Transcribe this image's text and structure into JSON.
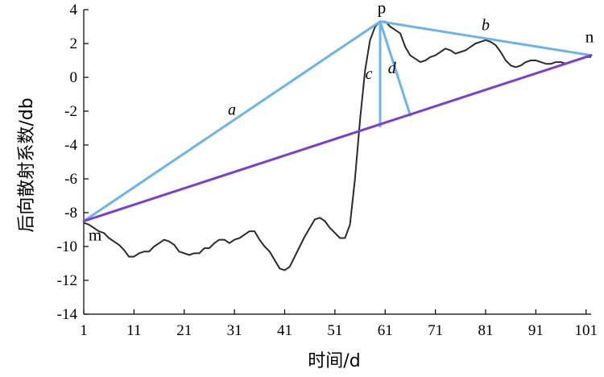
{
  "chart_data": {
    "type": "line",
    "xlabel": "时间/d",
    "ylabel": "后向散射系数/db",
    "xlim": [
      1,
      102
    ],
    "ylim": [
      -14,
      4
    ],
    "xticks": [
      1,
      11,
      21,
      31,
      41,
      51,
      61,
      71,
      81,
      91,
      101
    ],
    "yticks": [
      4,
      2,
      0,
      -2,
      -4,
      -6,
      -8,
      -10,
      -12,
      -14
    ],
    "series": [
      {
        "color": "#2b2b2b",
        "x": [
          1,
          2,
          3,
          4,
          5,
          6,
          7,
          8,
          9,
          10,
          11,
          12,
          13,
          14,
          15,
          16,
          17,
          18,
          19,
          20,
          21,
          22,
          23,
          24,
          25,
          26,
          27,
          28,
          29,
          30,
          31,
          32,
          33,
          34,
          35,
          36,
          37,
          38,
          39,
          40,
          41,
          42,
          43,
          44,
          45,
          46,
          47,
          48,
          49,
          50,
          51,
          52,
          53,
          54,
          55,
          56,
          57,
          58,
          59,
          60,
          61,
          62,
          63,
          64,
          65,
          66,
          67,
          68,
          69,
          70,
          71,
          72,
          73,
          74,
          75,
          76,
          77,
          78,
          79,
          80,
          81,
          82,
          83,
          84,
          85,
          86,
          87,
          88,
          89,
          90,
          91,
          92,
          93,
          94,
          95,
          96,
          97,
          98,
          99,
          100,
          101,
          102
        ],
        "y": [
          -8.6,
          -8.7,
          -8.9,
          -9.1,
          -9.2,
          -9.5,
          -9.7,
          -9.9,
          -10.2,
          -10.6,
          -10.6,
          -10.4,
          -10.3,
          -10.3,
          -10.0,
          -9.8,
          -9.6,
          -9.7,
          -9.9,
          -10.3,
          -10.4,
          -10.5,
          -10.4,
          -10.4,
          -10.1,
          -10.1,
          -9.8,
          -9.6,
          -9.6,
          -9.8,
          -9.6,
          -9.5,
          -9.3,
          -9.1,
          -9.1,
          -9.6,
          -10.0,
          -10.3,
          -10.8,
          -11.3,
          -11.4,
          -11.2,
          -10.6,
          -10.0,
          -9.4,
          -8.9,
          -8.4,
          -8.3,
          -8.5,
          -8.9,
          -9.2,
          -9.5,
          -9.5,
          -8.7,
          -6.0,
          -2.5,
          0.4,
          2.2,
          3.0,
          3.3,
          3.3,
          3.0,
          2.8,
          2.6,
          1.8,
          1.3,
          1.1,
          0.9,
          1.0,
          1.2,
          1.3,
          1.5,
          1.7,
          1.6,
          1.4,
          1.5,
          1.6,
          1.8,
          2.0,
          2.1,
          2.2,
          2.1,
          1.9,
          1.5,
          1.0,
          0.7,
          0.6,
          0.7,
          0.9,
          1.0,
          1.0,
          0.9,
          0.8,
          0.8,
          0.9,
          0.9,
          0.8,
          0.9,
          1.0,
          1.1,
          1.2,
          1.2
        ]
      }
    ],
    "reference_points": [
      {
        "label": "m",
        "x": 1,
        "y": -8.5
      },
      {
        "label": "p",
        "x": 60,
        "y": 3.3
      },
      {
        "label": "n",
        "x": 102,
        "y": 1.3
      }
    ],
    "segments": [
      {
        "label": "a",
        "from": [
          1,
          -8.5
        ],
        "to": [
          60,
          3.3
        ],
        "color": "#6cb4ec"
      },
      {
        "label": "b",
        "from": [
          60,
          3.3
        ],
        "to": [
          102,
          1.3
        ],
        "color": "#6cb4ec"
      },
      {
        "label": "c",
        "from": [
          60,
          3.3
        ],
        "to": [
          60,
          -2.9
        ],
        "color": "#6cb4ec"
      },
      {
        "label": "d",
        "from": [
          60,
          3.3
        ],
        "to": [
          66,
          -2.25
        ],
        "color": "#6cb4ec"
      },
      {
        "label": "",
        "from": [
          1,
          -8.5
        ],
        "to": [
          102,
          1.3
        ],
        "color": "#7a3fd1"
      }
    ]
  }
}
